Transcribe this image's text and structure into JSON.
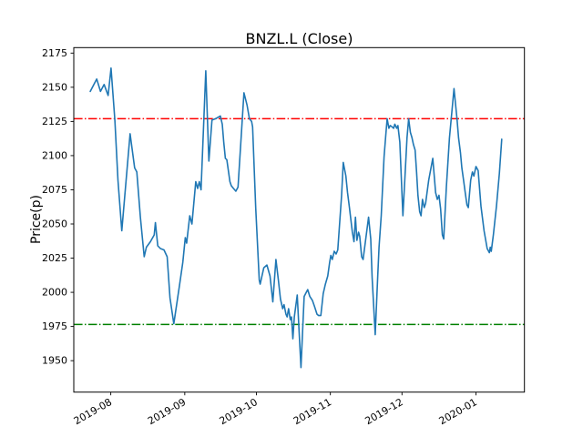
{
  "chart_data": {
    "type": "line",
    "title": "BNZL.L (Close)",
    "xlabel": "",
    "ylabel": "Price(p)",
    "grid": false,
    "legend": null,
    "background": "#ffffff",
    "x_units": "calendar days relative to first data point",
    "xlim": [
      -6.9,
      181.9
    ],
    "ylim": [
      1927,
      2179
    ],
    "y_ticks": [
      1950,
      1975,
      2000,
      2025,
      2050,
      2075,
      2100,
      2125,
      2150,
      2175
    ],
    "x_ticks": [
      {
        "label": "2019-08",
        "x": 8.6
      },
      {
        "label": "2019-09",
        "x": 39.6
      },
      {
        "label": "2019-10",
        "x": 69.6
      },
      {
        "label": "2019-11",
        "x": 100.6
      },
      {
        "label": "2019-12",
        "x": 130.6
      },
      {
        "label": "2020-01",
        "x": 161.6
      }
    ],
    "hlines": [
      {
        "name": "upper-threshold",
        "value": 2127,
        "color": "#ff0000",
        "linestyle": "dashdot"
      },
      {
        "name": "lower-threshold",
        "value": 1976.5,
        "color": "#008000",
        "linestyle": "dashdot"
      }
    ],
    "series": [
      {
        "name": "Close",
        "color": "#1f77b4",
        "points": [
          [
            0.0,
            2147
          ],
          [
            2.7,
            2156
          ],
          [
            4.3,
            2147
          ],
          [
            5.8,
            2152
          ],
          [
            7.5,
            2144
          ],
          [
            8.7,
            2164
          ],
          [
            10.3,
            2126
          ],
          [
            11.6,
            2082
          ],
          [
            13.2,
            2045
          ],
          [
            16.7,
            2116
          ],
          [
            18.6,
            2091
          ],
          [
            19.5,
            2088
          ],
          [
            21.0,
            2055
          ],
          [
            22.6,
            2026
          ],
          [
            23.5,
            2033
          ],
          [
            25.2,
            2037
          ],
          [
            26.8,
            2042
          ],
          [
            27.3,
            2051
          ],
          [
            28.3,
            2034
          ],
          [
            29.4,
            2032
          ],
          [
            30.9,
            2031
          ],
          [
            32.2,
            2026
          ],
          [
            33.4,
            1996
          ],
          [
            35.0,
            1977
          ],
          [
            37.3,
            2004
          ],
          [
            38.8,
            2022
          ],
          [
            39.8,
            2040
          ],
          [
            40.4,
            2036
          ],
          [
            41.7,
            2056
          ],
          [
            42.6,
            2050
          ],
          [
            44.2,
            2081
          ],
          [
            45.0,
            2076
          ],
          [
            45.7,
            2081
          ],
          [
            46.4,
            2075
          ],
          [
            48.4,
            2162
          ],
          [
            49.7,
            2096
          ],
          [
            51.0,
            2126
          ],
          [
            52.5,
            2127
          ],
          [
            54.5,
            2129
          ],
          [
            55.3,
            2123
          ],
          [
            55.9,
            2110
          ],
          [
            56.6,
            2098
          ],
          [
            57.2,
            2097
          ],
          [
            58.5,
            2081
          ],
          [
            59.1,
            2078
          ],
          [
            60.0,
            2076
          ],
          [
            61.0,
            2074
          ],
          [
            61.9,
            2077
          ],
          [
            64.4,
            2146
          ],
          [
            65.7,
            2137
          ],
          [
            66.7,
            2127
          ],
          [
            67.6,
            2125
          ],
          [
            68.0,
            2121
          ],
          [
            69.3,
            2062
          ],
          [
            70.8,
            2009
          ],
          [
            71.2,
            2006
          ],
          [
            72.7,
            2018
          ],
          [
            74.0,
            2020
          ],
          [
            75.3,
            2012
          ],
          [
            76.5,
            1993
          ],
          [
            77.8,
            2024
          ],
          [
            78.8,
            2009
          ],
          [
            79.7,
            1995
          ],
          [
            80.6,
            1988
          ],
          [
            81.2,
            1991
          ],
          [
            82.0,
            1984
          ],
          [
            82.5,
            1982
          ],
          [
            83.1,
            1988
          ],
          [
            83.8,
            1980
          ],
          [
            84.3,
            1982
          ],
          [
            84.9,
            1966
          ],
          [
            85.5,
            1982
          ],
          [
            86.7,
            1998
          ],
          [
            88.3,
            1945
          ],
          [
            89.6,
            1997
          ],
          [
            90.5,
            2000
          ],
          [
            91.1,
            2002
          ],
          [
            92.0,
            1997
          ],
          [
            93.1,
            1994
          ],
          [
            93.9,
            1990
          ],
          [
            95.0,
            1984
          ],
          [
            95.7,
            1983
          ],
          [
            96.6,
            1983
          ],
          [
            97.6,
            1999
          ],
          [
            98.5,
            2006
          ],
          [
            99.5,
            2012
          ],
          [
            100.3,
            2022
          ],
          [
            100.8,
            2027
          ],
          [
            101.4,
            2024
          ],
          [
            102.2,
            2030
          ],
          [
            103.0,
            2028
          ],
          [
            103.7,
            2031
          ],
          [
            105.3,
            2071
          ],
          [
            106.0,
            2095
          ],
          [
            107.1,
            2085
          ],
          [
            107.8,
            2073
          ],
          [
            108.6,
            2062
          ],
          [
            109.2,
            2053
          ],
          [
            109.8,
            2044
          ],
          [
            110.5,
            2037
          ],
          [
            111.1,
            2055
          ],
          [
            111.7,
            2038
          ],
          [
            112.4,
            2044
          ],
          [
            112.9,
            2041
          ],
          [
            113.7,
            2026
          ],
          [
            114.3,
            2024
          ],
          [
            115.5,
            2040
          ],
          [
            116.6,
            2055
          ],
          [
            117.5,
            2039
          ],
          [
            118.1,
            2011
          ],
          [
            119.4,
            1969
          ],
          [
            120.4,
            2011
          ],
          [
            121.0,
            2033
          ],
          [
            121.9,
            2056
          ],
          [
            123.1,
            2099
          ],
          [
            123.8,
            2115
          ],
          [
            124.4,
            2127
          ],
          [
            125.1,
            2120
          ],
          [
            125.7,
            2122
          ],
          [
            126.5,
            2121
          ],
          [
            127.1,
            2120
          ],
          [
            127.6,
            2123
          ],
          [
            128.4,
            2120
          ],
          [
            128.9,
            2122
          ],
          [
            129.7,
            2110
          ],
          [
            131.0,
            2056
          ],
          [
            132.7,
            2113
          ],
          [
            133.4,
            2127
          ],
          [
            134.1,
            2117
          ],
          [
            134.8,
            2113
          ],
          [
            135.4,
            2108
          ],
          [
            136.1,
            2104
          ],
          [
            136.7,
            2088
          ],
          [
            137.3,
            2071
          ],
          [
            138.0,
            2059
          ],
          [
            138.6,
            2056
          ],
          [
            139.2,
            2068
          ],
          [
            139.9,
            2062
          ],
          [
            140.5,
            2065
          ],
          [
            141.8,
            2082
          ],
          [
            143.5,
            2098
          ],
          [
            144.7,
            2073
          ],
          [
            145.4,
            2068
          ],
          [
            146.1,
            2071
          ],
          [
            146.8,
            2061
          ],
          [
            147.5,
            2042
          ],
          [
            148.1,
            2039
          ],
          [
            149.2,
            2077
          ],
          [
            150.5,
            2113
          ],
          [
            152.4,
            2149
          ],
          [
            153.7,
            2126
          ],
          [
            154.3,
            2113
          ],
          [
            155.1,
            2102
          ],
          [
            155.7,
            2091
          ],
          [
            156.4,
            2082
          ],
          [
            157.1,
            2073
          ],
          [
            157.8,
            2064
          ],
          [
            158.4,
            2062
          ],
          [
            159.4,
            2082
          ],
          [
            160.1,
            2088
          ],
          [
            160.7,
            2085
          ],
          [
            161.6,
            2092
          ],
          [
            162.5,
            2089
          ],
          [
            163.7,
            2063
          ],
          [
            165.0,
            2045
          ],
          [
            166.3,
            2032
          ],
          [
            167.2,
            2029
          ],
          [
            167.6,
            2033
          ],
          [
            168.0,
            2030
          ],
          [
            168.9,
            2042
          ],
          [
            170.2,
            2063
          ],
          [
            171.4,
            2087
          ],
          [
            172.4,
            2112
          ]
        ]
      }
    ]
  }
}
